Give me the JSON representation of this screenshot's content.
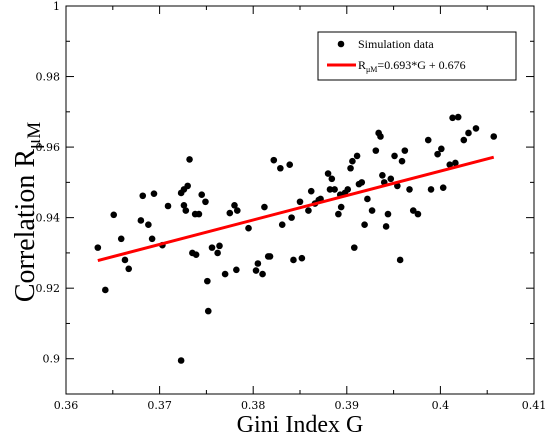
{
  "chart_data": {
    "type": "scatter",
    "title": "",
    "xlabel": "Gini Index G",
    "ylabel_main": "Correlation R",
    "ylabel_sub": "μM",
    "xlim": [
      0.36,
      0.41
    ],
    "ylim": [
      0.89,
      1.0
    ],
    "x_ticks": [
      0.36,
      0.37,
      0.38,
      0.39,
      0.4,
      0.41
    ],
    "x_tick_labels": [
      "0.36",
      "0.37",
      "0.38",
      "0.39",
      "0.4",
      "0.41"
    ],
    "y_ticks": [
      0.9,
      0.92,
      0.94,
      0.96,
      0.98,
      1.0
    ],
    "y_tick_labels": [
      "0.9",
      "0.92",
      "0.94",
      "0.96",
      "0.98",
      "1"
    ],
    "grid": false,
    "legend_position": "top-right",
    "series": [
      {
        "name": "Simulation data",
        "kind": "scatter",
        "color": "#000000",
        "points": [
          [
            0.3634,
            0.9315
          ],
          [
            0.3642,
            0.9195
          ],
          [
            0.3651,
            0.9408
          ],
          [
            0.3659,
            0.934
          ],
          [
            0.3663,
            0.928
          ],
          [
            0.3667,
            0.9255
          ],
          [
            0.368,
            0.9392
          ],
          [
            0.3682,
            0.9462
          ],
          [
            0.3688,
            0.938
          ],
          [
            0.3692,
            0.934
          ],
          [
            0.3694,
            0.9468
          ],
          [
            0.3703,
            0.9322
          ],
          [
            0.3709,
            0.9433
          ],
          [
            0.3723,
            0.8995
          ],
          [
            0.3723,
            0.947
          ],
          [
            0.3726,
            0.948
          ],
          [
            0.3726,
            0.9435
          ],
          [
            0.3728,
            0.942
          ],
          [
            0.373,
            0.949
          ],
          [
            0.3732,
            0.9565
          ],
          [
            0.3735,
            0.93
          ],
          [
            0.3738,
            0.941
          ],
          [
            0.3739,
            0.9295
          ],
          [
            0.3742,
            0.941
          ],
          [
            0.3745,
            0.9465
          ],
          [
            0.3749,
            0.9445
          ],
          [
            0.3751,
            0.922
          ],
          [
            0.3752,
            0.9135
          ],
          [
            0.3756,
            0.9315
          ],
          [
            0.3762,
            0.93
          ],
          [
            0.3764,
            0.932
          ],
          [
            0.377,
            0.924
          ],
          [
            0.3775,
            0.9413
          ],
          [
            0.378,
            0.9435
          ],
          [
            0.3782,
            0.9252
          ],
          [
            0.3783,
            0.942
          ],
          [
            0.3795,
            0.937
          ],
          [
            0.3803,
            0.925
          ],
          [
            0.3805,
            0.927
          ],
          [
            0.381,
            0.924
          ],
          [
            0.3812,
            0.943
          ],
          [
            0.3816,
            0.929
          ],
          [
            0.3818,
            0.929
          ],
          [
            0.3822,
            0.9563
          ],
          [
            0.3829,
            0.954
          ],
          [
            0.3831,
            0.938
          ],
          [
            0.3839,
            0.955
          ],
          [
            0.3841,
            0.94
          ],
          [
            0.3843,
            0.928
          ],
          [
            0.385,
            0.9445
          ],
          [
            0.3852,
            0.9285
          ],
          [
            0.3859,
            0.942
          ],
          [
            0.3862,
            0.9475
          ],
          [
            0.3866,
            0.944
          ],
          [
            0.387,
            0.945
          ],
          [
            0.3872,
            0.9453
          ],
          [
            0.388,
            0.9525
          ],
          [
            0.3882,
            0.948
          ],
          [
            0.3884,
            0.951
          ],
          [
            0.3887,
            0.948
          ],
          [
            0.3891,
            0.941
          ],
          [
            0.3893,
            0.9465
          ],
          [
            0.3894,
            0.943
          ],
          [
            0.3898,
            0.947
          ],
          [
            0.3901,
            0.948
          ],
          [
            0.3904,
            0.954
          ],
          [
            0.3906,
            0.956
          ],
          [
            0.3908,
            0.9315
          ],
          [
            0.3911,
            0.9575
          ],
          [
            0.3913,
            0.9495
          ],
          [
            0.3916,
            0.95
          ],
          [
            0.3919,
            0.938
          ],
          [
            0.3922,
            0.9453
          ],
          [
            0.3927,
            0.942
          ],
          [
            0.3931,
            0.959
          ],
          [
            0.3934,
            0.964
          ],
          [
            0.3936,
            0.963
          ],
          [
            0.3938,
            0.952
          ],
          [
            0.394,
            0.95
          ],
          [
            0.3942,
            0.9375
          ],
          [
            0.3944,
            0.941
          ],
          [
            0.3947,
            0.951
          ],
          [
            0.3951,
            0.9575
          ],
          [
            0.3954,
            0.949
          ],
          [
            0.3957,
            0.928
          ],
          [
            0.3959,
            0.956
          ],
          [
            0.3962,
            0.959
          ],
          [
            0.3967,
            0.948
          ],
          [
            0.3971,
            0.942
          ],
          [
            0.3976,
            0.941
          ],
          [
            0.3987,
            0.962
          ],
          [
            0.399,
            0.948
          ],
          [
            0.3997,
            0.958
          ],
          [
            0.4001,
            0.9595
          ],
          [
            0.4003,
            0.9485
          ],
          [
            0.401,
            0.955
          ],
          [
            0.4013,
            0.9683
          ],
          [
            0.4016,
            0.9555
          ],
          [
            0.4019,
            0.9685
          ],
          [
            0.4025,
            0.962
          ],
          [
            0.403,
            0.964
          ],
          [
            0.4038,
            0.9653
          ],
          [
            0.4057,
            0.963
          ]
        ]
      },
      {
        "name_main": "R",
        "name_sub": "μM",
        "name_rest": "=0.693*G + 0.676",
        "kind": "line",
        "color": "#ff0000",
        "slope": 0.693,
        "intercept": 0.676,
        "x_range": [
          0.3634,
          0.4057
        ]
      }
    ]
  }
}
